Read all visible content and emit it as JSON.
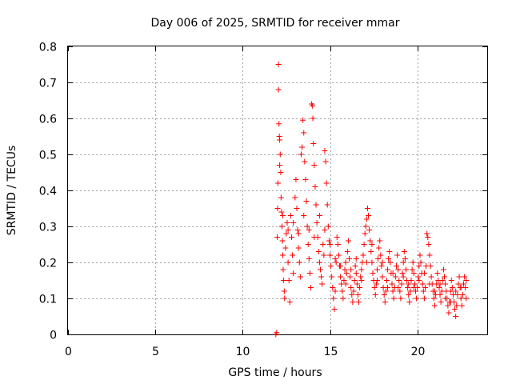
{
  "chart_data": {
    "type": "scatter",
    "title": "Day 006 of 2025, SRMTID for receiver mmar",
    "xlabel": "GPS time / hours",
    "ylabel": "SRMTID / TECUs",
    "xlim": [
      0,
      24
    ],
    "ylim": [
      0,
      0.8
    ],
    "xticks": [
      0,
      5,
      10,
      15,
      20
    ],
    "xtick_labels": [
      "0",
      "5",
      "10",
      "15",
      "20"
    ],
    "yticks": [
      0,
      0.1,
      0.2,
      0.3,
      0.4,
      0.5,
      0.6,
      0.7,
      0.8
    ],
    "ytick_labels": [
      "0",
      "0.1",
      "0.2",
      "0.3",
      "0.4",
      "0.5",
      "0.6",
      "0.7",
      "0.8"
    ],
    "grid": true,
    "marker": "+",
    "color": "#ff0000",
    "series": [
      {
        "name": "SRMTID",
        "points": [
          [
            11.9,
            0.0
          ],
          [
            11.95,
            0.005
          ],
          [
            11.98,
            0.27
          ],
          [
            12.0,
            0.35
          ],
          [
            12.02,
            0.42
          ],
          [
            12.05,
            0.75
          ],
          [
            12.05,
            0.68
          ],
          [
            12.08,
            0.585
          ],
          [
            12.1,
            0.55
          ],
          [
            12.12,
            0.54
          ],
          [
            12.15,
            0.5
          ],
          [
            12.12,
            0.47
          ],
          [
            12.18,
            0.45
          ],
          [
            12.2,
            0.38
          ],
          [
            12.22,
            0.34
          ],
          [
            12.25,
            0.3
          ],
          [
            12.28,
            0.26
          ],
          [
            12.3,
            0.22
          ],
          [
            12.32,
            0.18
          ],
          [
            12.35,
            0.15
          ],
          [
            12.38,
            0.12
          ],
          [
            12.4,
            0.1
          ],
          [
            12.45,
            0.24
          ],
          [
            12.5,
            0.28
          ],
          [
            12.55,
            0.31
          ],
          [
            12.6,
            0.2
          ],
          [
            12.65,
            0.15
          ],
          [
            12.7,
            0.09
          ],
          [
            12.75,
            0.33
          ],
          [
            12.8,
            0.27
          ],
          [
            12.85,
            0.22
          ],
          [
            12.9,
            0.17
          ],
          [
            13.0,
            0.38
          ],
          [
            13.05,
            0.43
          ],
          [
            13.1,
            0.35
          ],
          [
            13.15,
            0.29
          ],
          [
            13.2,
            0.24
          ],
          [
            13.25,
            0.2
          ],
          [
            13.3,
            0.16
          ],
          [
            13.35,
            0.5
          ],
          [
            13.4,
            0.52
          ],
          [
            13.45,
            0.595
          ],
          [
            13.5,
            0.56
          ],
          [
            13.55,
            0.48
          ],
          [
            13.6,
            0.43
          ],
          [
            13.65,
            0.37
          ],
          [
            13.7,
            0.3
          ],
          [
            13.75,
            0.25
          ],
          [
            13.8,
            0.21
          ],
          [
            13.85,
            0.17
          ],
          [
            13.9,
            0.13
          ],
          [
            13.95,
            0.64
          ],
          [
            14.0,
            0.635
          ],
          [
            14.02,
            0.6
          ],
          [
            14.05,
            0.53
          ],
          [
            14.1,
            0.47
          ],
          [
            14.15,
            0.41
          ],
          [
            14.2,
            0.36
          ],
          [
            14.25,
            0.31
          ],
          [
            14.3,
            0.27
          ],
          [
            14.35,
            0.23
          ],
          [
            14.4,
            0.2
          ],
          [
            14.45,
            0.18
          ],
          [
            14.5,
            0.16
          ],
          [
            14.55,
            0.14
          ],
          [
            14.6,
            0.25
          ],
          [
            14.65,
            0.22
          ],
          [
            14.7,
            0.51
          ],
          [
            14.75,
            0.48
          ],
          [
            14.8,
            0.42
          ],
          [
            14.85,
            0.36
          ],
          [
            14.9,
            0.3
          ],
          [
            14.95,
            0.26
          ],
          [
            15.0,
            0.22
          ],
          [
            15.05,
            0.19
          ],
          [
            15.1,
            0.16
          ],
          [
            15.15,
            0.13
          ],
          [
            15.2,
            0.1
          ],
          [
            15.25,
            0.07
          ],
          [
            15.3,
            0.12
          ],
          [
            15.35,
            0.2
          ],
          [
            15.4,
            0.27
          ],
          [
            15.45,
            0.25
          ],
          [
            15.5,
            0.22
          ],
          [
            15.55,
            0.19
          ],
          [
            15.6,
            0.16
          ],
          [
            15.65,
            0.14
          ],
          [
            15.7,
            0.12
          ],
          [
            15.75,
            0.1
          ],
          [
            15.8,
            0.15
          ],
          [
            15.85,
            0.18
          ],
          [
            15.9,
            0.2
          ],
          [
            15.95,
            0.17
          ],
          [
            16.0,
            0.23
          ],
          [
            16.05,
            0.26
          ],
          [
            16.1,
            0.21
          ],
          [
            16.15,
            0.16
          ],
          [
            16.2,
            0.13
          ],
          [
            16.25,
            0.11
          ],
          [
            16.3,
            0.09
          ],
          [
            16.35,
            0.12
          ],
          [
            16.4,
            0.15
          ],
          [
            16.45,
            0.19
          ],
          [
            16.5,
            0.17
          ],
          [
            16.55,
            0.14
          ],
          [
            16.6,
            0.11
          ],
          [
            16.65,
            0.09
          ],
          [
            16.7,
            0.13
          ],
          [
            16.75,
            0.16
          ],
          [
            16.8,
            0.18
          ],
          [
            16.85,
            0.2
          ],
          [
            16.9,
            0.22
          ],
          [
            16.95,
            0.25
          ],
          [
            17.0,
            0.28
          ],
          [
            17.05,
            0.3
          ],
          [
            17.1,
            0.32
          ],
          [
            17.15,
            0.35
          ],
          [
            17.2,
            0.33
          ],
          [
            17.25,
            0.29
          ],
          [
            17.3,
            0.26
          ],
          [
            17.35,
            0.23
          ],
          [
            17.4,
            0.2
          ],
          [
            17.45,
            0.17
          ],
          [
            17.5,
            0.15
          ],
          [
            17.55,
            0.13
          ],
          [
            17.6,
            0.11
          ],
          [
            17.65,
            0.14
          ],
          [
            17.7,
            0.18
          ],
          [
            17.75,
            0.21
          ],
          [
            17.8,
            0.24
          ],
          [
            17.85,
            0.26
          ],
          [
            17.9,
            0.22
          ],
          [
            17.95,
            0.19
          ],
          [
            18.0,
            0.16
          ],
          [
            18.05,
            0.13
          ],
          [
            18.1,
            0.11
          ],
          [
            18.15,
            0.09
          ],
          [
            18.2,
            0.12
          ],
          [
            18.25,
            0.15
          ],
          [
            18.3,
            0.18
          ],
          [
            18.35,
            0.21
          ],
          [
            18.4,
            0.23
          ],
          [
            18.45,
            0.2
          ],
          [
            18.5,
            0.17
          ],
          [
            18.55,
            0.14
          ],
          [
            18.6,
            0.12
          ],
          [
            18.65,
            0.1
          ],
          [
            18.7,
            0.13
          ],
          [
            18.75,
            0.16
          ],
          [
            18.8,
            0.19
          ],
          [
            18.85,
            0.22
          ],
          [
            18.9,
            0.18
          ],
          [
            18.95,
            0.15
          ],
          [
            19.0,
            0.12
          ],
          [
            19.05,
            0.1
          ],
          [
            19.1,
            0.14
          ],
          [
            19.15,
            0.17
          ],
          [
            19.2,
            0.2
          ],
          [
            19.25,
            0.23
          ],
          [
            19.3,
            0.21
          ],
          [
            19.35,
            0.18
          ],
          [
            19.4,
            0.15
          ],
          [
            19.45,
            0.13
          ],
          [
            19.5,
            0.11
          ],
          [
            19.55,
            0.09
          ],
          [
            19.6,
            0.12
          ],
          [
            19.65,
            0.15
          ],
          [
            19.7,
            0.18
          ],
          [
            19.75,
            0.2
          ],
          [
            19.8,
            0.17
          ],
          [
            19.85,
            0.14
          ],
          [
            19.9,
            0.12
          ],
          [
            19.95,
            0.1
          ],
          [
            20.0,
            0.13
          ],
          [
            20.05,
            0.16
          ],
          [
            20.1,
            0.19
          ],
          [
            20.15,
            0.22
          ],
          [
            20.2,
            0.2
          ],
          [
            20.25,
            0.17
          ],
          [
            20.3,
            0.14
          ],
          [
            20.35,
            0.12
          ],
          [
            20.4,
            0.1
          ],
          [
            20.45,
            0.13
          ],
          [
            20.5,
            0.19
          ],
          [
            20.55,
            0.28
          ],
          [
            20.6,
            0.27
          ],
          [
            20.65,
            0.25
          ],
          [
            20.7,
            0.22
          ],
          [
            20.75,
            0.19
          ],
          [
            20.8,
            0.16
          ],
          [
            20.85,
            0.14
          ],
          [
            20.9,
            0.12
          ],
          [
            20.95,
            0.1
          ],
          [
            21.0,
            0.08
          ],
          [
            21.05,
            0.11
          ],
          [
            21.1,
            0.14
          ],
          [
            21.15,
            0.17
          ],
          [
            21.2,
            0.15
          ],
          [
            21.25,
            0.13
          ],
          [
            21.3,
            0.11
          ],
          [
            21.35,
            0.09
          ],
          [
            21.4,
            0.12
          ],
          [
            21.45,
            0.15
          ],
          [
            21.5,
            0.18
          ],
          [
            21.55,
            0.16
          ],
          [
            21.6,
            0.14
          ],
          [
            21.65,
            0.12
          ],
          [
            21.7,
            0.1
          ],
          [
            21.75,
            0.08
          ],
          [
            21.8,
            0.06
          ],
          [
            21.85,
            0.09
          ],
          [
            21.9,
            0.12
          ],
          [
            21.95,
            0.15
          ],
          [
            22.0,
            0.13
          ],
          [
            22.05,
            0.11
          ],
          [
            22.1,
            0.09
          ],
          [
            22.15,
            0.07
          ],
          [
            22.2,
            0.05
          ],
          [
            22.25,
            0.08
          ],
          [
            22.3,
            0.11
          ],
          [
            22.35,
            0.14
          ],
          [
            22.4,
            0.16
          ],
          [
            22.45,
            0.13
          ],
          [
            22.5,
            0.1
          ],
          [
            22.55,
            0.08
          ],
          [
            22.6,
            0.11
          ],
          [
            22.65,
            0.14
          ],
          [
            22.7,
            0.16
          ],
          [
            22.75,
            0.13
          ],
          [
            22.8,
            0.1
          ],
          [
            12.3,
            0.33
          ],
          [
            12.6,
            0.29
          ],
          [
            12.9,
            0.31
          ],
          [
            13.2,
            0.28
          ],
          [
            13.5,
            0.33
          ],
          [
            13.8,
            0.29
          ],
          [
            14.1,
            0.27
          ],
          [
            14.4,
            0.33
          ],
          [
            14.7,
            0.29
          ],
          [
            15.0,
            0.25
          ],
          [
            15.3,
            0.21
          ],
          [
            15.6,
            0.19
          ],
          [
            15.9,
            0.14
          ],
          [
            16.2,
            0.18
          ],
          [
            16.5,
            0.21
          ],
          [
            16.8,
            0.15
          ],
          [
            17.1,
            0.2
          ],
          [
            17.4,
            0.25
          ],
          [
            17.7,
            0.15
          ],
          [
            18.0,
            0.2
          ],
          [
            18.3,
            0.13
          ],
          [
            18.6,
            0.17
          ],
          [
            18.9,
            0.13
          ],
          [
            19.2,
            0.16
          ],
          [
            19.5,
            0.14
          ],
          [
            19.8,
            0.13
          ],
          [
            20.1,
            0.15
          ],
          [
            20.4,
            0.17
          ],
          [
            20.7,
            0.14
          ],
          [
            21.0,
            0.12
          ],
          [
            21.3,
            0.14
          ],
          [
            21.6,
            0.1
          ],
          [
            21.9,
            0.09
          ],
          [
            22.2,
            0.12
          ],
          [
            22.5,
            0.13
          ],
          [
            22.8,
            0.15
          ]
        ]
      }
    ]
  }
}
